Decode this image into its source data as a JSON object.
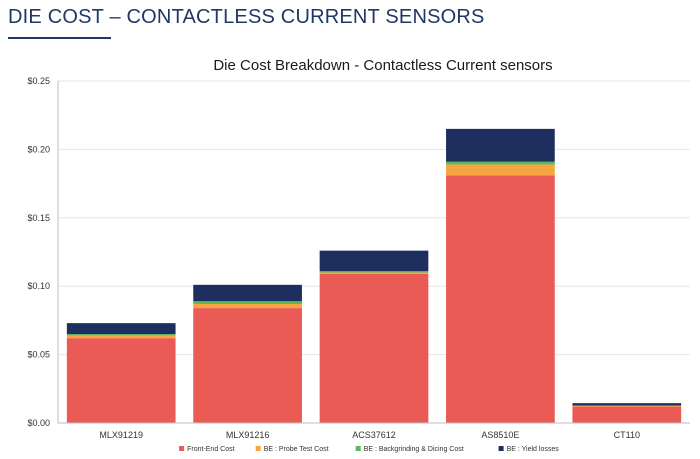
{
  "slide": {
    "title": "DIE COST – CONTACTLESS CURRENT SENSORS"
  },
  "chart_data": {
    "type": "bar",
    "stacked": true,
    "title": "Die Cost Breakdown - Contactless Current sensors",
    "xlabel": "",
    "ylabel": "",
    "ylim": [
      0,
      0.25
    ],
    "yticks": [
      0,
      0.05,
      0.1,
      0.15,
      0.2,
      0.25
    ],
    "ytick_labels": [
      "$0.00",
      "$0.05",
      "$0.10",
      "$0.15",
      "$0.20",
      "$0.25"
    ],
    "grid": true,
    "legend_position": "bottom",
    "categories": [
      "MLX91219",
      "MLX91216",
      "ACS37612",
      "AS8510E",
      "CT110"
    ],
    "series": [
      {
        "name": "Front-End Cost",
        "color": "#eb5b55",
        "values": [
          0.062,
          0.084,
          0.109,
          0.181,
          0.012
        ]
      },
      {
        "name": "BE : Probe Test Cost",
        "color": "#f7a541",
        "values": [
          0.002,
          0.003,
          0.001,
          0.008,
          0.0005
        ]
      },
      {
        "name": "BE : Backgrinding & Dicing Cost",
        "color": "#5cb85c",
        "values": [
          0.001,
          0.002,
          0.001,
          0.002,
          0.0003
        ]
      },
      {
        "name": "BE : Yield losses",
        "color": "#1e2f5f",
        "values": [
          0.008,
          0.012,
          0.015,
          0.024,
          0.0017
        ]
      }
    ]
  }
}
